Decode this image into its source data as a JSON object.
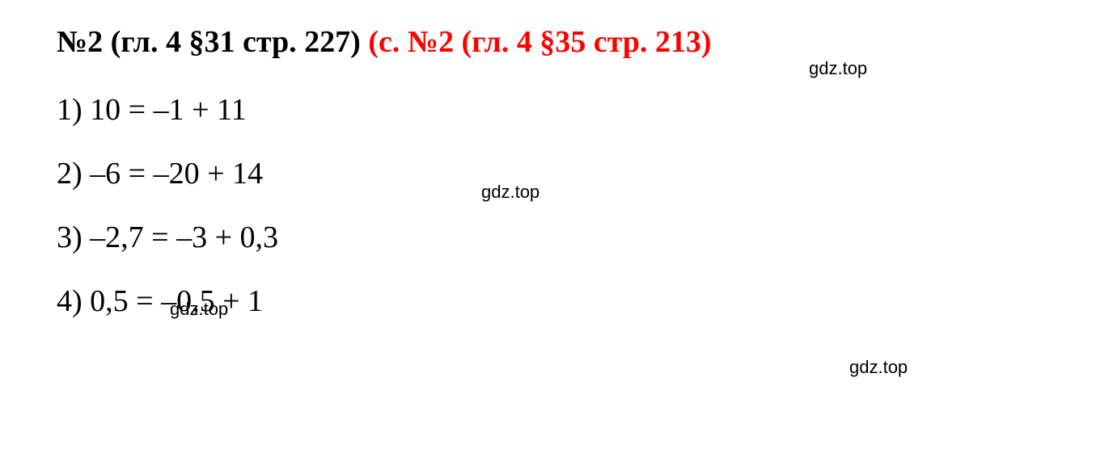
{
  "header": {
    "part1_black": "№2 (гл. 4 §31 стр. 227) ",
    "part2_red": "(с. №2 (гл. 4 §35 стр. 213)"
  },
  "equations": {
    "eq1": "1) 10 = –1 + 11",
    "eq2": "2) –6 = –20 + 14",
    "eq3": "3) –2,7 = –3 + 0,3",
    "eq4": "4) 0,5 = –0,5 + 1"
  },
  "watermarks": {
    "wm1": "gdz.top",
    "wm2": "gdz.top",
    "wm3": "gdz.top",
    "wm4": "gdz.top"
  },
  "styling": {
    "background_color": "#ffffff",
    "black_color": "#000000",
    "red_color": "#ff0000",
    "header_fontsize": 38,
    "equation_fontsize": 38,
    "watermark_fontsize": 22,
    "font_family": "Times New Roman"
  }
}
